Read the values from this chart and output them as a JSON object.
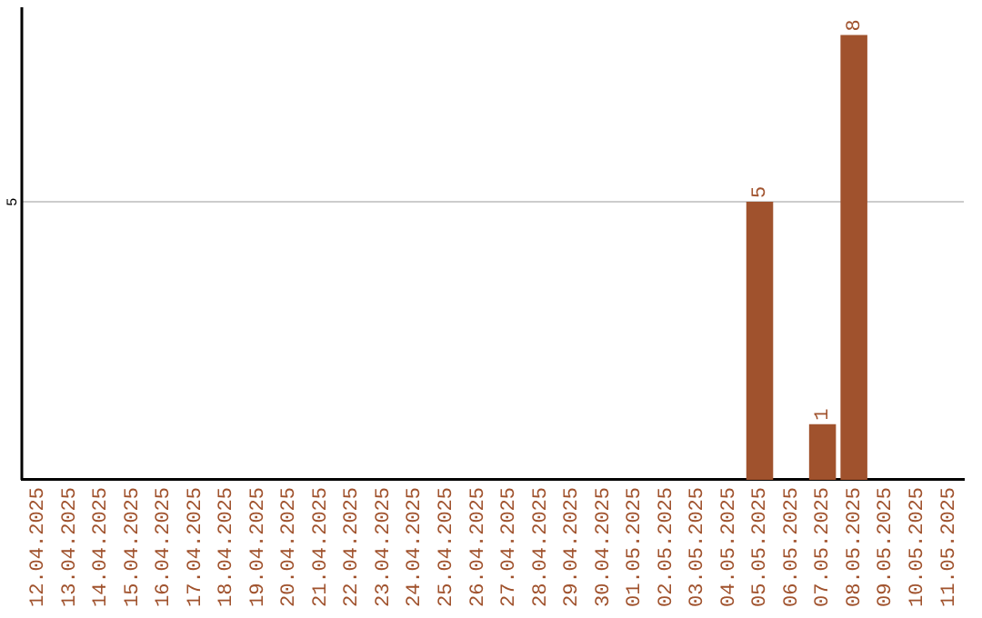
{
  "chart_data": {
    "type": "bar",
    "categories": [
      "12.04.2025",
      "13.04.2025",
      "14.04.2025",
      "15.04.2025",
      "16.04.2025",
      "17.04.2025",
      "18.04.2025",
      "19.04.2025",
      "20.04.2025",
      "21.04.2025",
      "22.04.2025",
      "23.04.2025",
      "24.04.2025",
      "25.04.2025",
      "26.04.2025",
      "27.04.2025",
      "28.04.2025",
      "29.04.2025",
      "30.04.2025",
      "01.05.2025",
      "02.05.2025",
      "03.05.2025",
      "04.05.2025",
      "05.05.2025",
      "06.05.2025",
      "07.05.2025",
      "08.05.2025",
      "09.05.2025",
      "10.05.2025",
      "11.05.2025"
    ],
    "values": [
      null,
      null,
      null,
      null,
      null,
      null,
      null,
      null,
      null,
      null,
      null,
      null,
      null,
      null,
      null,
      null,
      null,
      null,
      null,
      null,
      null,
      null,
      null,
      5,
      null,
      1,
      8,
      null,
      null,
      null
    ],
    "data_labels": true,
    "ylim": [
      0,
      8.5
    ],
    "color": "#a0522d",
    "ref_lines": [
      {
        "axis": "y",
        "value": 5,
        "label": "5",
        "color": "#cccccc"
      }
    ],
    "legend": false
  }
}
